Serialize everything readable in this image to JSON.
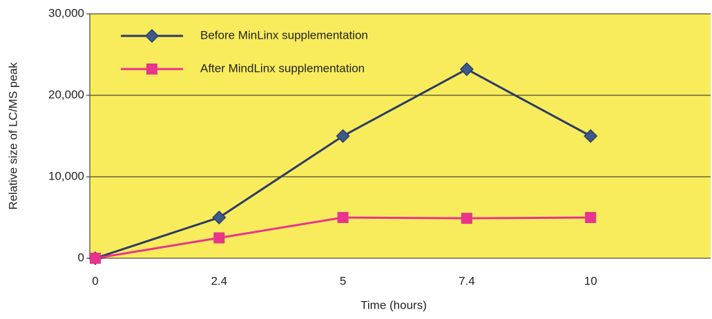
{
  "chart_data": {
    "type": "line",
    "x_label": "Time (hours)",
    "y_label": "Relative size of LC/MS peak",
    "categories": [
      "0",
      "2.4",
      "5",
      "7.4",
      "10"
    ],
    "series": [
      {
        "name": "Before MinLinx supplementation",
        "color": "#2b3a67",
        "values": [
          0,
          5000,
          15000,
          23200,
          15000
        ]
      },
      {
        "name": "After MindLinx supplementation",
        "color": "#e8348c",
        "values": [
          0,
          2500,
          5000,
          4900,
          5000
        ]
      }
    ],
    "ylim": [
      0,
      30000
    ],
    "yticks": [
      0,
      {
        "value": 10000,
        "label": "10,000"
      },
      {
        "value": 20000,
        "label": "20,000"
      },
      {
        "value": 30000,
        "label": "30,000"
      }
    ],
    "grid": true,
    "legend": "upper-left",
    "background": "#f8ec5c"
  }
}
